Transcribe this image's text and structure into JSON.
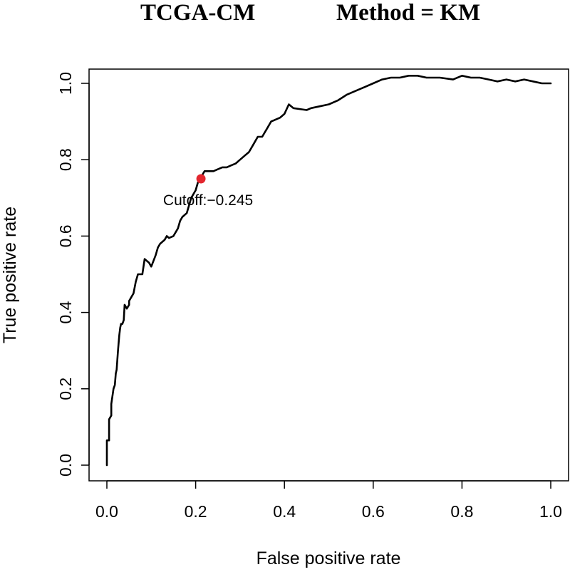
{
  "chart_data": {
    "type": "line",
    "title_left": "TCGA-CM",
    "title_right": "Method = KM",
    "xlabel": "False positive rate",
    "ylabel": "True positive rate",
    "xlim": [
      0,
      1
    ],
    "ylim": [
      0,
      1.02
    ],
    "x_ticks": [
      "0.0",
      "0.2",
      "0.4",
      "0.6",
      "0.8",
      "1.0"
    ],
    "y_ticks": [
      "0.0",
      "0.2",
      "0.4",
      "0.6",
      "0.8",
      "1.0"
    ],
    "grid": false,
    "series": [
      {
        "color": "#000000",
        "x": [
          0,
          0,
          0.005,
          0.005,
          0.01,
          0.01,
          0.015,
          0.018,
          0.02,
          0.022,
          0.025,
          0.028,
          0.03,
          0.032,
          0.035,
          0.038,
          0.04,
          0.045,
          0.05,
          0.05,
          0.06,
          0.065,
          0.07,
          0.08,
          0.085,
          0.09,
          0.095,
          0.1,
          0.11,
          0.115,
          0.12,
          0.13,
          0.135,
          0.14,
          0.15,
          0.16,
          0.165,
          0.17,
          0.18,
          0.19,
          0.2,
          0.205,
          0.21,
          0.215,
          0.22,
          0.23,
          0.24,
          0.25,
          0.26,
          0.27,
          0.28,
          0.29,
          0.3,
          0.31,
          0.32,
          0.33,
          0.34,
          0.35,
          0.36,
          0.37,
          0.38,
          0.39,
          0.4,
          0.41,
          0.42,
          0.45,
          0.46,
          0.48,
          0.5,
          0.52,
          0.54,
          0.56,
          0.58,
          0.6,
          0.62,
          0.64,
          0.66,
          0.68,
          0.69,
          0.7,
          0.72,
          0.75,
          0.78,
          0.8,
          0.82,
          0.84,
          0.86,
          0.88,
          0.9,
          0.92,
          0.94,
          0.96,
          0.98,
          1.0
        ],
        "y": [
          0,
          0.065,
          0.065,
          0.12,
          0.13,
          0.16,
          0.2,
          0.21,
          0.24,
          0.25,
          0.3,
          0.34,
          0.36,
          0.37,
          0.37,
          0.38,
          0.42,
          0.41,
          0.42,
          0.43,
          0.45,
          0.48,
          0.5,
          0.5,
          0.54,
          0.535,
          0.53,
          0.52,
          0.55,
          0.57,
          0.58,
          0.59,
          0.6,
          0.595,
          0.6,
          0.62,
          0.64,
          0.65,
          0.66,
          0.7,
          0.72,
          0.74,
          0.75,
          0.76,
          0.77,
          0.77,
          0.77,
          0.775,
          0.78,
          0.78,
          0.785,
          0.79,
          0.8,
          0.81,
          0.82,
          0.84,
          0.86,
          0.86,
          0.88,
          0.9,
          0.905,
          0.91,
          0.92,
          0.945,
          0.935,
          0.93,
          0.935,
          0.94,
          0.945,
          0.955,
          0.97,
          0.98,
          0.99,
          1.0,
          1.01,
          1.015,
          1.015,
          1.02,
          1.02,
          1.02,
          1.015,
          1.015,
          1.01,
          1.02,
          1.015,
          1.015,
          1.01,
          1.005,
          1.01,
          1.005,
          1.01,
          1.005,
          1.0,
          1.0
        ]
      }
    ],
    "cutoff_point": {
      "x": 0.212,
      "y": 0.75,
      "label": "Cutoff:−0.245",
      "color": "#e3262e"
    }
  }
}
